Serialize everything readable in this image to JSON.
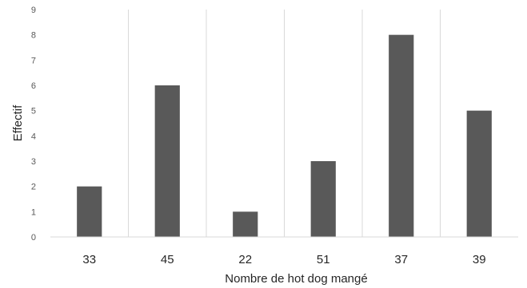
{
  "chart_data": {
    "type": "bar",
    "categories": [
      "33",
      "45",
      "22",
      "51",
      "37",
      "39"
    ],
    "values": [
      2,
      6,
      1,
      3,
      8,
      5
    ],
    "title": "",
    "xlabel": "Nombre de hot dog mangé",
    "ylabel": "Effectif",
    "ylim": [
      0,
      9
    ],
    "yticks": [
      "0",
      "1",
      "2",
      "3",
      "4",
      "5",
      "6",
      "7",
      "8",
      "9"
    ],
    "grid": "vertical-separators",
    "bar_color": "#595959",
    "grid_color": "#d9d9d9"
  }
}
